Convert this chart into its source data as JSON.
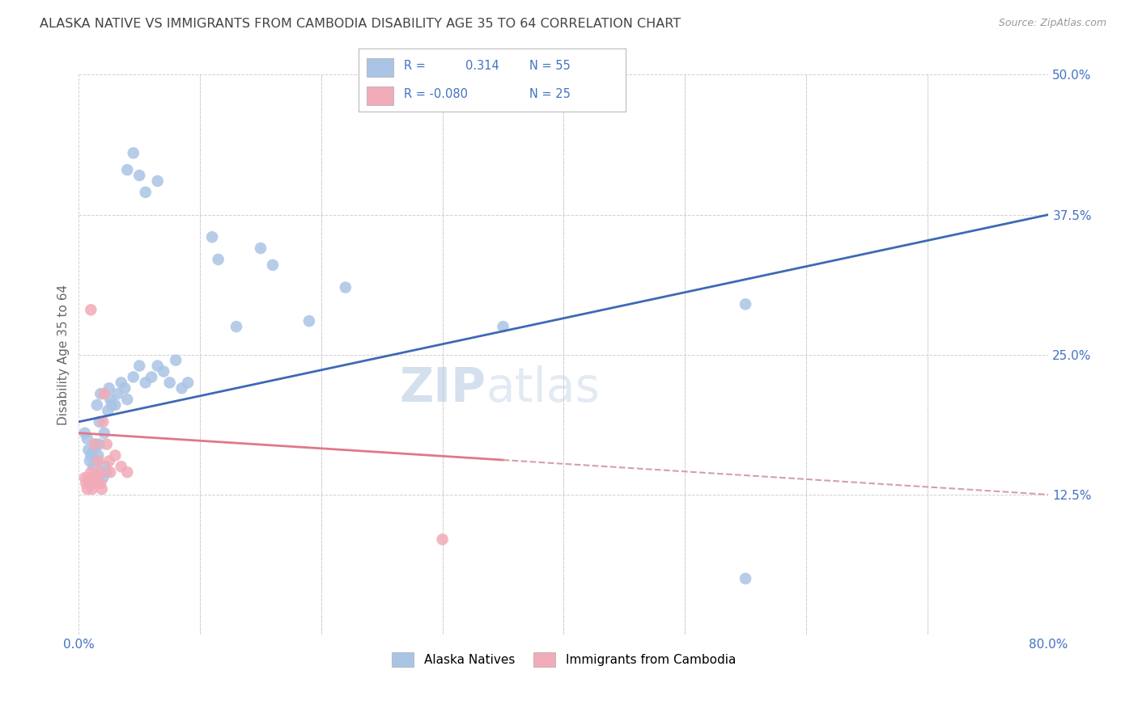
{
  "title": "ALASKA NATIVE VS IMMIGRANTS FROM CAMBODIA DISABILITY AGE 35 TO 64 CORRELATION CHART",
  "source": "Source: ZipAtlas.com",
  "ylabel": "Disability Age 35 to 64",
  "xlim": [
    0.0,
    80.0
  ],
  "ylim": [
    0.0,
    50.0
  ],
  "alaska_color": "#aac4e5",
  "cambodia_color": "#f2abb8",
  "alaska_line_color": "#3f69b5",
  "cambodia_line_color": "#e07888",
  "cambodia_line_dash_color": "#d4a0a8",
  "background_color": "#ffffff",
  "grid_color": "#d0d0d0",
  "title_color": "#444444",
  "axis_tick_color": "#4472c4",
  "watermark_color": "#c8d8e8",
  "alaska_dots": [
    [
      0.5,
      18.0
    ],
    [
      0.7,
      17.5
    ],
    [
      0.8,
      16.5
    ],
    [
      0.9,
      15.5
    ],
    [
      1.0,
      14.0
    ],
    [
      1.0,
      16.0
    ],
    [
      1.1,
      13.5
    ],
    [
      1.2,
      15.0
    ],
    [
      1.3,
      16.5
    ],
    [
      1.4,
      17.0
    ],
    [
      1.5,
      20.5
    ],
    [
      1.5,
      15.5
    ],
    [
      1.6,
      16.0
    ],
    [
      1.7,
      17.0
    ],
    [
      1.7,
      19.0
    ],
    [
      1.8,
      21.5
    ],
    [
      1.9,
      14.5
    ],
    [
      2.0,
      14.0
    ],
    [
      2.1,
      18.0
    ],
    [
      2.2,
      15.0
    ],
    [
      2.3,
      14.5
    ],
    [
      2.4,
      20.0
    ],
    [
      2.5,
      22.0
    ],
    [
      2.6,
      21.0
    ],
    [
      2.7,
      20.5
    ],
    [
      3.0,
      20.5
    ],
    [
      3.2,
      21.5
    ],
    [
      3.5,
      22.5
    ],
    [
      3.8,
      22.0
    ],
    [
      4.0,
      21.0
    ],
    [
      4.5,
      23.0
    ],
    [
      5.0,
      24.0
    ],
    [
      5.5,
      22.5
    ],
    [
      6.0,
      23.0
    ],
    [
      6.5,
      24.0
    ],
    [
      7.0,
      23.5
    ],
    [
      7.5,
      22.5
    ],
    [
      8.0,
      24.5
    ],
    [
      8.5,
      22.0
    ],
    [
      9.0,
      22.5
    ],
    [
      4.0,
      41.5
    ],
    [
      4.5,
      43.0
    ],
    [
      5.0,
      41.0
    ],
    [
      5.5,
      39.5
    ],
    [
      6.5,
      40.5
    ],
    [
      11.0,
      35.5
    ],
    [
      11.5,
      33.5
    ],
    [
      13.0,
      27.5
    ],
    [
      15.0,
      34.5
    ],
    [
      16.0,
      33.0
    ],
    [
      19.0,
      28.0
    ],
    [
      22.0,
      31.0
    ],
    [
      35.0,
      27.5
    ],
    [
      55.0,
      29.5
    ],
    [
      55.0,
      5.0
    ]
  ],
  "cambodia_dots": [
    [
      0.5,
      14.0
    ],
    [
      0.6,
      13.5
    ],
    [
      0.7,
      13.0
    ],
    [
      0.8,
      14.0
    ],
    [
      0.9,
      13.5
    ],
    [
      1.0,
      14.5
    ],
    [
      1.1,
      13.0
    ],
    [
      1.2,
      13.5
    ],
    [
      1.3,
      17.0
    ],
    [
      1.4,
      14.0
    ],
    [
      1.5,
      14.0
    ],
    [
      1.6,
      15.5
    ],
    [
      1.7,
      14.5
    ],
    [
      1.8,
      13.5
    ],
    [
      1.9,
      13.0
    ],
    [
      2.0,
      19.0
    ],
    [
      2.1,
      21.5
    ],
    [
      2.3,
      17.0
    ],
    [
      2.5,
      15.5
    ],
    [
      2.6,
      14.5
    ],
    [
      3.0,
      16.0
    ],
    [
      3.5,
      15.0
    ],
    [
      4.0,
      14.5
    ],
    [
      30.0,
      8.5
    ],
    [
      1.0,
      29.0
    ]
  ]
}
